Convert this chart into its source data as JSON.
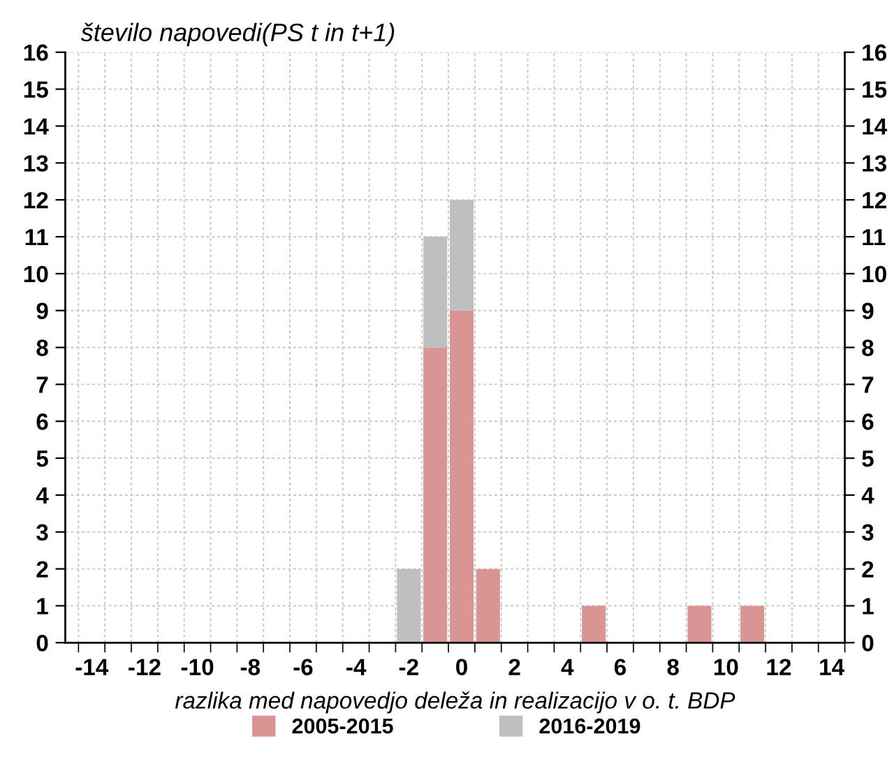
{
  "chart_data": {
    "type": "bar",
    "ylabel": "število napovedi(PS t in t+1)",
    "xlabel": "razlika med napovedjo deleža in realizacijo v o. t. BDP",
    "stacked": true,
    "x": [
      -14,
      -13,
      -12,
      -11,
      -10,
      -9,
      -8,
      -7,
      -6,
      -5,
      -4,
      -3,
      -2,
      -1,
      0,
      1,
      2,
      3,
      4,
      5,
      6,
      7,
      8,
      9,
      10,
      11,
      12,
      13,
      14
    ],
    "series": [
      {
        "name": "2005-2015",
        "color": "#d99594",
        "values": [
          0,
          0,
          0,
          0,
          0,
          0,
          0,
          0,
          0,
          0,
          0,
          0,
          0,
          8,
          9,
          2,
          0,
          0,
          0,
          1,
          0,
          0,
          0,
          1,
          0,
          1,
          0,
          0,
          0
        ]
      },
      {
        "name": "2016-2019",
        "color": "#bfbfbf",
        "values": [
          0,
          0,
          0,
          0,
          0,
          0,
          0,
          0,
          0,
          0,
          0,
          0,
          2,
          3,
          3,
          0,
          0,
          0,
          0,
          0,
          0,
          0,
          0,
          0,
          0,
          0,
          0,
          0,
          0
        ]
      }
    ],
    "xlim": [
      -15,
      14.5
    ],
    "xticks": [
      -14,
      -12,
      -10,
      -8,
      -6,
      -4,
      -2,
      0,
      2,
      4,
      6,
      8,
      10,
      12,
      14,
      {
        "value": -14.5,
        "label": null
      },
      {
        "value": -13.5,
        "label": null
      },
      {
        "value": -12.5,
        "label": null
      },
      {
        "value": -11.5,
        "label": null
      },
      {
        "value": -10.5,
        "label": null
      },
      {
        "value": -9.5,
        "label": null
      },
      {
        "value": -8.5,
        "label": null
      },
      {
        "value": -7.5,
        "label": null
      },
      {
        "value": -6.5,
        "label": null
      },
      {
        "value": -5.5,
        "label": null
      },
      {
        "value": -4.5,
        "label": null
      },
      {
        "value": -3.5,
        "label": null
      },
      {
        "value": -2.5,
        "label": null
      },
      {
        "value": -1.5,
        "label": null
      },
      {
        "value": -0.5,
        "label": null
      },
      {
        "value": 0.5,
        "label": null
      },
      {
        "value": 1.5,
        "label": null
      },
      {
        "value": 2.5,
        "label": null
      },
      {
        "value": 3.5,
        "label": null
      },
      {
        "value": 4.5,
        "label": null
      },
      {
        "value": 5.5,
        "label": null
      },
      {
        "value": 6.5,
        "label": null
      },
      {
        "value": 7.5,
        "label": null
      },
      {
        "value": 8.5,
        "label": null
      },
      {
        "value": 9.5,
        "label": null
      },
      {
        "value": 10.5,
        "label": null
      },
      {
        "value": 11.5,
        "label": null
      },
      {
        "value": 12.5,
        "label": null
      },
      {
        "value": 13.5,
        "label": null
      },
      {
        "value": 14.5,
        "label": null
      }
    ],
    "ylim": [
      0,
      16
    ],
    "yticks": [
      0,
      1,
      2,
      3,
      4,
      5,
      6,
      7,
      8,
      9,
      10,
      11,
      12,
      13,
      14,
      15,
      16
    ],
    "y2lim": [
      0,
      16
    ],
    "y2ticks": [
      0,
      1,
      2,
      3,
      4,
      5,
      6,
      7,
      8,
      9,
      10,
      11,
      12,
      13,
      14,
      15,
      16
    ],
    "grid": true,
    "legend": "bottom"
  }
}
